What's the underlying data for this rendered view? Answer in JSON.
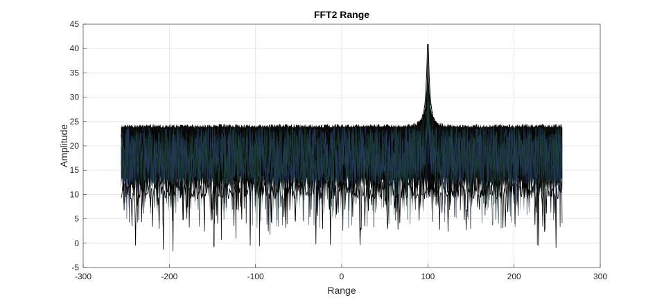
{
  "chart_data": {
    "type": "line",
    "title": "FFT2 Range",
    "xlabel": "Range",
    "ylabel": "Amplitude",
    "xlim": [
      -300,
      300
    ],
    "ylim": [
      -5,
      45
    ],
    "xticks": [
      -300,
      -200,
      -100,
      0,
      100,
      200,
      300
    ],
    "yticks": [
      -5,
      0,
      5,
      10,
      15,
      20,
      25,
      30,
      35,
      40,
      45
    ],
    "grid": true,
    "legend": "none",
    "series_x_range": [
      -256,
      256
    ],
    "noise_floor_top": 24.5,
    "noise_floor_median": 18,
    "noise_dips_min": -1.7,
    "peak": {
      "x": 100,
      "y": 40.8
    },
    "series_colors": [
      "#000000",
      "#1f2f5a",
      "#1f4a4a",
      "#2a3a6a",
      "#1a3a2a"
    ]
  }
}
